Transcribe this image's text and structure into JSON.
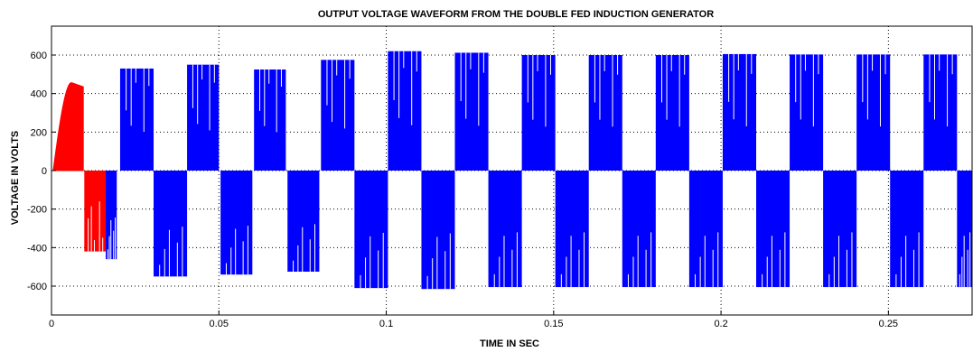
{
  "chart_data": {
    "type": "line",
    "title": "OUTPUT VOLTAGE WAVEFORM FROM THE DOUBLE FED INDUCTION GENERATOR",
    "xlabel": "TIME IN SEC",
    "ylabel": "VOLTAGE IN VOLTS",
    "xlim": [
      0,
      0.275
    ],
    "ylim": [
      -750,
      750
    ],
    "x_ticks": [
      0,
      0.05,
      0.1,
      0.15,
      0.2,
      0.25
    ],
    "x_tick_labels": [
      "0",
      "0.05",
      "0.1",
      "0.15",
      "0.2",
      "0.25"
    ],
    "y_ticks": [
      -600,
      -400,
      -200,
      0,
      200,
      400,
      600
    ],
    "y_tick_labels": [
      "-600",
      "-400",
      "-200",
      "0",
      "200",
      "400",
      "600"
    ],
    "grid": true,
    "grid_style": "dotted",
    "series": [
      {
        "color": "#ff0000",
        "blocks": [
          {
            "x0": 0.0005,
            "x1": 0.0095,
            "v": 460,
            "shape": "rise"
          },
          {
            "x0": 0.0098,
            "x1": 0.0162,
            "v": -420
          }
        ]
      },
      {
        "color": "#0000ff",
        "blocks": [
          {
            "x0": 0.0162,
            "x1": 0.0195,
            "v": -460
          },
          {
            "x0": 0.0205,
            "x1": 0.0305,
            "v": 530
          },
          {
            "x0": 0.0305,
            "x1": 0.0405,
            "v": -550
          },
          {
            "x0": 0.0405,
            "x1": 0.05,
            "v": 550
          },
          {
            "x0": 0.0505,
            "x1": 0.06,
            "v": -540
          },
          {
            "x0": 0.0605,
            "x1": 0.07,
            "v": 525
          },
          {
            "x0": 0.0705,
            "x1": 0.08,
            "v": -525
          },
          {
            "x0": 0.0805,
            "x1": 0.0905,
            "v": 575
          },
          {
            "x0": 0.0905,
            "x1": 0.1005,
            "v": -610
          },
          {
            "x0": 0.1005,
            "x1": 0.1105,
            "v": 620
          },
          {
            "x0": 0.1105,
            "x1": 0.1205,
            "v": -615
          },
          {
            "x0": 0.1205,
            "x1": 0.1305,
            "v": 612
          },
          {
            "x0": 0.1305,
            "x1": 0.1405,
            "v": -605
          },
          {
            "x0": 0.1405,
            "x1": 0.1505,
            "v": 600
          },
          {
            "x0": 0.1505,
            "x1": 0.1605,
            "v": -605
          },
          {
            "x0": 0.1605,
            "x1": 0.1705,
            "v": 600
          },
          {
            "x0": 0.1705,
            "x1": 0.1805,
            "v": -605
          },
          {
            "x0": 0.1805,
            "x1": 0.1905,
            "v": 600
          },
          {
            "x0": 0.1905,
            "x1": 0.2005,
            "v": -605
          },
          {
            "x0": 0.2005,
            "x1": 0.2105,
            "v": 605
          },
          {
            "x0": 0.2105,
            "x1": 0.2205,
            "v": -605
          },
          {
            "x0": 0.2205,
            "x1": 0.2305,
            "v": 603
          },
          {
            "x0": 0.2305,
            "x1": 0.2405,
            "v": -605
          },
          {
            "x0": 0.2405,
            "x1": 0.2505,
            "v": 603
          },
          {
            "x0": 0.2505,
            "x1": 0.2605,
            "v": -605
          },
          {
            "x0": 0.2605,
            "x1": 0.2705,
            "v": 603
          },
          {
            "x0": 0.2705,
            "x1": 0.275,
            "v": -605
          }
        ]
      }
    ]
  }
}
